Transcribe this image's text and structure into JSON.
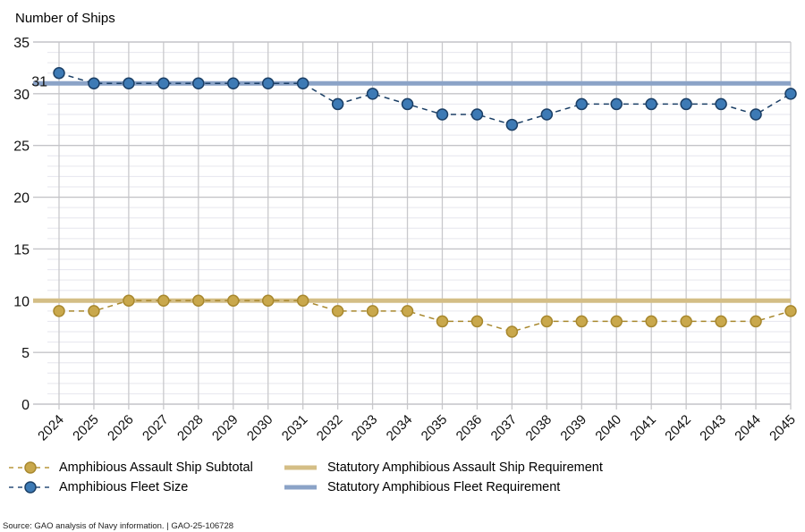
{
  "chart_data": {
    "type": "line",
    "title": "",
    "ylabel": "Number of Ships",
    "xlabel": "",
    "ylim": [
      0,
      35
    ],
    "yticks": [
      0,
      5,
      10,
      15,
      20,
      25,
      30,
      35
    ],
    "minor_grid_step": 1,
    "grid": true,
    "categories": [
      "2024",
      "2025",
      "2026",
      "2027",
      "2028",
      "2029",
      "2030",
      "2031",
      "2032",
      "2033",
      "2034",
      "2035",
      "2036",
      "2037",
      "2038",
      "2039",
      "2040",
      "2041",
      "2042",
      "2043",
      "2044",
      "2045"
    ],
    "series": [
      {
        "name": "Amphibious Assault Ship Subtotal",
        "style": "dashed-markers",
        "color": "#C9A84C",
        "edge": "#A8882E",
        "values": [
          9,
          9,
          10,
          10,
          10,
          10,
          10,
          10,
          9,
          9,
          9,
          8,
          8,
          7,
          8,
          8,
          8,
          8,
          8,
          8,
          8,
          9
        ]
      },
      {
        "name": "Amphibious Fleet Size",
        "style": "dashed-markers",
        "color": "#3D7AB5",
        "edge": "#1B3F66",
        "values": [
          32,
          31,
          31,
          31,
          31,
          31,
          31,
          31,
          29,
          30,
          29,
          28,
          28,
          27,
          28,
          29,
          29,
          29,
          29,
          29,
          28,
          30
        ]
      }
    ],
    "reference_lines": [
      {
        "name": "Statutory Amphibious Assault Ship Requirement",
        "value": 10,
        "color": "#D4BE86"
      },
      {
        "name": "Statutory Amphibious Fleet Requirement",
        "value": 31,
        "color": "#8BA3C7",
        "label": "31"
      }
    ],
    "legend_position": "bottom"
  },
  "legend": {
    "items": [
      {
        "label": "Amphibious Assault Ship Subtotal"
      },
      {
        "label": "Amphibious Fleet Size"
      },
      {
        "label": "Statutory Amphibious Assault Ship Requirement"
      },
      {
        "label": "Statutory Amphibious Fleet Requirement"
      }
    ]
  },
  "source": "Source: GAO analysis of Navy information.  |  GAO-25-106728"
}
